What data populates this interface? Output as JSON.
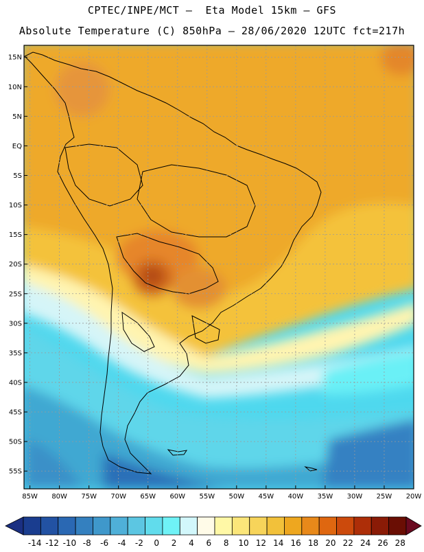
{
  "header": {
    "line1": "CPTEC/INPE/MCT –  Eta Model 15km – GFS",
    "line2": "Absolute Temperature (C) 850hPa – 28/06/2020 12UTC fct=217h"
  },
  "map": {
    "lon_range": [
      -86,
      -20
    ],
    "lat_range": [
      -58,
      17
    ],
    "lat_ticks": [
      {
        "value": 15,
        "label": "15N"
      },
      {
        "value": 10,
        "label": "10N"
      },
      {
        "value": 5,
        "label": "5N"
      },
      {
        "value": 0,
        "label": "EQ"
      },
      {
        "value": -5,
        "label": "5S"
      },
      {
        "value": -10,
        "label": "10S"
      },
      {
        "value": -15,
        "label": "15S"
      },
      {
        "value": -20,
        "label": "20S"
      },
      {
        "value": -25,
        "label": "25S"
      },
      {
        "value": -30,
        "label": "30S"
      },
      {
        "value": -35,
        "label": "35S"
      },
      {
        "value": -40,
        "label": "40S"
      },
      {
        "value": -45,
        "label": "45S"
      },
      {
        "value": -50,
        "label": "50S"
      },
      {
        "value": -55,
        "label": "55S"
      }
    ],
    "lon_ticks": [
      {
        "value": -85,
        "label": "85W"
      },
      {
        "value": -80,
        "label": "80W"
      },
      {
        "value": -75,
        "label": "75W"
      },
      {
        "value": -70,
        "label": "70W"
      },
      {
        "value": -65,
        "label": "65W"
      },
      {
        "value": -60,
        "label": "60W"
      },
      {
        "value": -55,
        "label": "55W"
      },
      {
        "value": -50,
        "label": "50W"
      },
      {
        "value": -45,
        "label": "45W"
      },
      {
        "value": -40,
        "label": "40W"
      },
      {
        "value": -35,
        "label": "35W"
      },
      {
        "value": -30,
        "label": "30W"
      },
      {
        "value": -25,
        "label": "25W"
      },
      {
        "value": -20,
        "label": "20W"
      }
    ]
  },
  "colorbar": {
    "labels": [
      "-14",
      "-12",
      "-10",
      "-8",
      "-6",
      "-4",
      "-2",
      "0",
      "2",
      "4",
      "6",
      "8",
      "10",
      "12",
      "14",
      "16",
      "18",
      "20",
      "22",
      "24",
      "26",
      "28"
    ],
    "colors": [
      "#1a3d8f",
      "#2252a3",
      "#2a68b3",
      "#3480bf",
      "#3f98cb",
      "#4fb0d8",
      "#5cc6e2",
      "#61dcec",
      "#6ff2f6",
      "#d2f7fb",
      "#fffbe8",
      "#fff8a6",
      "#fbe67a",
      "#f7d45a",
      "#f2c13a",
      "#eea71f",
      "#e8891a",
      "#df6710",
      "#cc4a0c",
      "#ad2e08",
      "#8a1b06",
      "#6a0e04"
    ],
    "left_cap_color": "#1a2f82",
    "right_cap_color": "#6a0a20"
  }
}
